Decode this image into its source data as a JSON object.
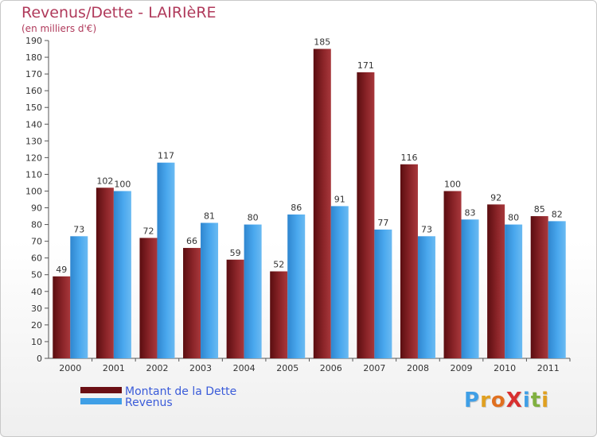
{
  "title": "Revenus/Dette - LAIRIèRE",
  "subtitle": "(en milliers d'€)",
  "logo": {
    "text": "ProXiti"
  },
  "colors": {
    "title": "#b03a5b",
    "dette": "#7a1a1f",
    "revenus": "#3f9fe6",
    "legend_text": "#3a5bd9"
  },
  "legend": [
    {
      "label": "Montant de la Dette",
      "color": "#6b0f14"
    },
    {
      "label": "Revenus",
      "color": "#3f9fe6"
    }
  ],
  "chart_data": {
    "type": "bar",
    "categories": [
      "2000",
      "2001",
      "2002",
      "2003",
      "2004",
      "2005",
      "2006",
      "2007",
      "2008",
      "2009",
      "2010",
      "2011"
    ],
    "series": [
      {
        "name": "Montant de la Dette",
        "values": [
          49,
          102,
          72,
          66,
          59,
          52,
          185,
          171,
          116,
          100,
          92,
          85
        ]
      },
      {
        "name": "Revenus",
        "values": [
          73,
          100,
          117,
          81,
          80,
          86,
          91,
          77,
          73,
          83,
          80,
          82
        ]
      }
    ],
    "ylim": [
      0,
      190
    ],
    "ytick_step": 10,
    "grid": false,
    "legend_position": "bottom-left"
  }
}
